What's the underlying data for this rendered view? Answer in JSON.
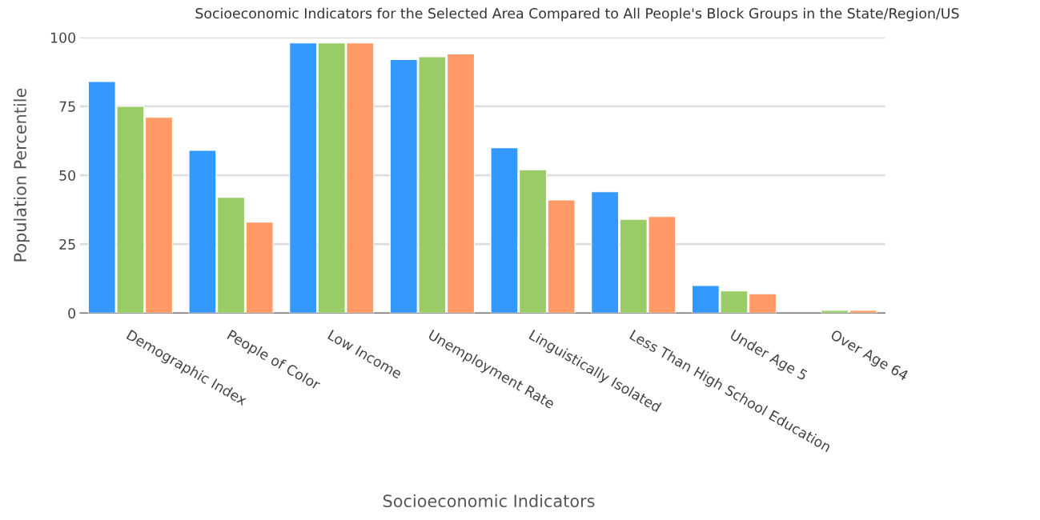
{
  "chart_data": {
    "type": "bar",
    "title": "Socioeconomic Indicators for the Selected Area Compared to All People's Block Groups in the State/Region/US",
    "xlabel": "Socioeconomic Indicators",
    "ylabel": "Population Percentile",
    "categories": [
      "Demographic Index",
      "People of Color",
      "Low Income",
      "Unemployment Rate",
      "Linguistically Isolated",
      "Less Than High School Education",
      "Under Age 5",
      "Over Age 64"
    ],
    "series": [
      {
        "color": "#3399ff",
        "values": [
          84,
          59,
          98,
          92,
          60,
          44,
          10,
          null
        ]
      },
      {
        "color": "#99cc66",
        "values": [
          75,
          42,
          98,
          93,
          52,
          34,
          8,
          1
        ]
      },
      {
        "color": "#ff9966",
        "values": [
          71,
          33,
          98,
          94,
          41,
          35,
          7,
          1
        ]
      }
    ],
    "ylim": [
      0,
      100
    ],
    "yticks": [
      0,
      25,
      50,
      75,
      100
    ],
    "grid": "y",
    "legend": false
  }
}
